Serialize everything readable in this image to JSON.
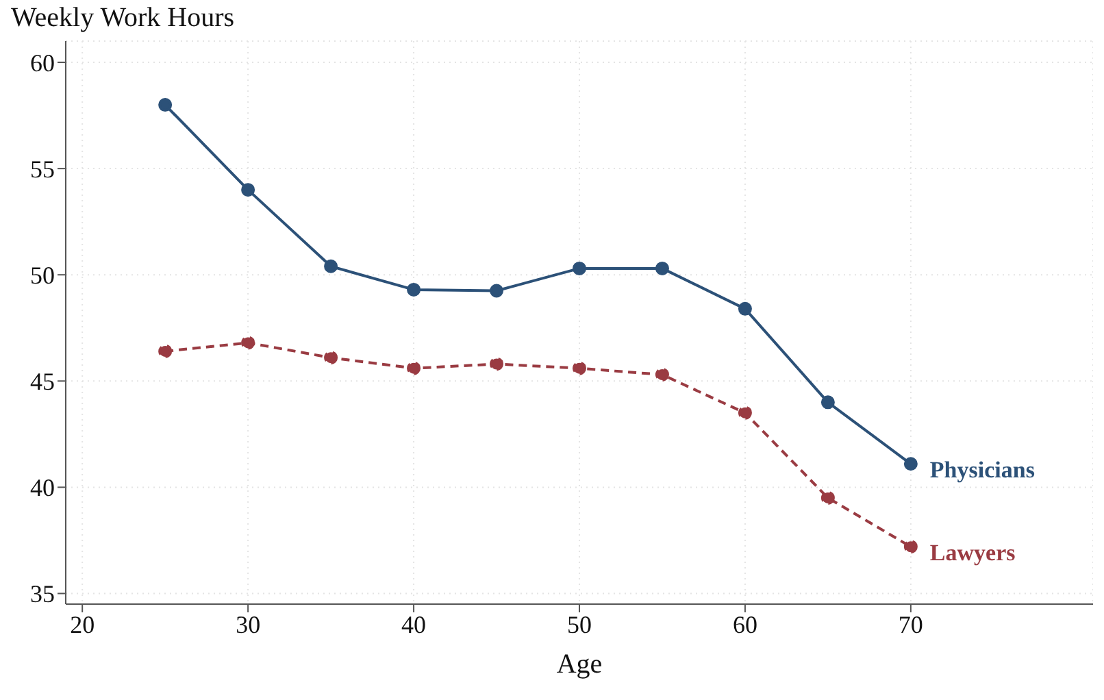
{
  "chart_data": {
    "type": "line",
    "ylabel": "Weekly Work Hours",
    "xlabel": "Age",
    "x": [
      25,
      30,
      35,
      40,
      45,
      50,
      55,
      60,
      65,
      70
    ],
    "series": [
      {
        "name": "Physicians",
        "color": "#2c5178",
        "line_style": "solid",
        "values": [
          58.0,
          54.0,
          50.4,
          49.3,
          49.25,
          50.3,
          50.3,
          48.4,
          44.0,
          41.1
        ]
      },
      {
        "name": "Lawyers",
        "color": "#9a3b42",
        "line_style": "dashed",
        "values": [
          46.4,
          46.8,
          46.1,
          45.6,
          45.8,
          45.6,
          45.3,
          43.5,
          39.5,
          37.2
        ]
      }
    ],
    "xlim": [
      19,
      81
    ],
    "xticks": [
      20,
      30,
      40,
      50,
      60,
      70
    ],
    "ylim": [
      34.5,
      61
    ],
    "yticks": [
      35,
      40,
      45,
      50,
      55,
      60
    ],
    "grid": true,
    "legend": false,
    "marker": "circle"
  }
}
